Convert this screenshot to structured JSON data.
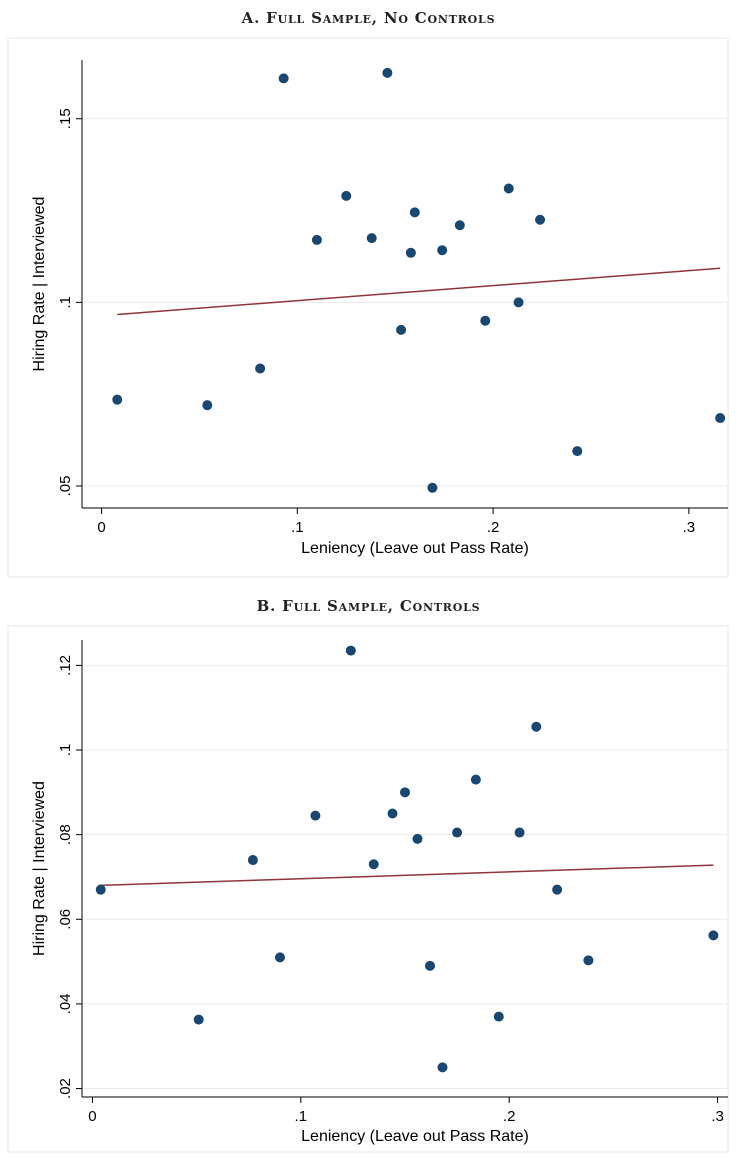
{
  "chart_data": [
    {
      "type": "scatter",
      "title": "A. Full Sample, No Controls",
      "xlabel": "Leniency (Leave out Pass Rate)",
      "ylabel": "Hiring Rate | Interviewed",
      "xlim": [
        -0.01,
        0.32
      ],
      "ylim": [
        0.044,
        0.166
      ],
      "xticks": [
        0,
        0.1,
        0.2,
        0.3
      ],
      "xtick_labels": [
        "0",
        ".1",
        ".2",
        ".3"
      ],
      "yticks": [
        0.05,
        0.1,
        0.15
      ],
      "ytick_labels": [
        ".05",
        ".1",
        ".15"
      ],
      "grid": true,
      "points": [
        {
          "x": 0.008,
          "y": 0.0735
        },
        {
          "x": 0.054,
          "y": 0.072
        },
        {
          "x": 0.081,
          "y": 0.082
        },
        {
          "x": 0.093,
          "y": 0.161
        },
        {
          "x": 0.11,
          "y": 0.117
        },
        {
          "x": 0.125,
          "y": 0.129
        },
        {
          "x": 0.138,
          "y": 0.1175
        },
        {
          "x": 0.146,
          "y": 0.1625
        },
        {
          "x": 0.153,
          "y": 0.0925
        },
        {
          "x": 0.158,
          "y": 0.1135
        },
        {
          "x": 0.16,
          "y": 0.1245
        },
        {
          "x": 0.169,
          "y": 0.0495
        },
        {
          "x": 0.174,
          "y": 0.1142
        },
        {
          "x": 0.183,
          "y": 0.121
        },
        {
          "x": 0.196,
          "y": 0.095
        },
        {
          "x": 0.208,
          "y": 0.131
        },
        {
          "x": 0.213,
          "y": 0.1
        },
        {
          "x": 0.224,
          "y": 0.1225
        },
        {
          "x": 0.243,
          "y": 0.0595
        },
        {
          "x": 0.316,
          "y": 0.0685
        }
      ],
      "fit": {
        "x": [
          0.008,
          0.316
        ],
        "y": [
          0.0967,
          0.1093
        ]
      }
    },
    {
      "type": "scatter",
      "title": "B. Full Sample, Controls",
      "xlabel": "Leniency (Leave out Pass Rate)",
      "ylabel": "Hiring Rate | Interviewed",
      "xlim": [
        -0.005,
        0.305
      ],
      "ylim": [
        0.018,
        0.126
      ],
      "xticks": [
        0,
        0.1,
        0.2,
        0.3
      ],
      "xtick_labels": [
        "0",
        ".1",
        ".2",
        ".3"
      ],
      "yticks": [
        0.02,
        0.04,
        0.06,
        0.08,
        0.1,
        0.12
      ],
      "ytick_labels": [
        ".02",
        ".04",
        ".06",
        ".08",
        ".1",
        ".12"
      ],
      "grid": true,
      "points": [
        {
          "x": 0.004,
          "y": 0.067
        },
        {
          "x": 0.051,
          "y": 0.0363
        },
        {
          "x": 0.077,
          "y": 0.074
        },
        {
          "x": 0.09,
          "y": 0.051
        },
        {
          "x": 0.107,
          "y": 0.0845
        },
        {
          "x": 0.124,
          "y": 0.1235
        },
        {
          "x": 0.135,
          "y": 0.073
        },
        {
          "x": 0.144,
          "y": 0.085
        },
        {
          "x": 0.15,
          "y": 0.09
        },
        {
          "x": 0.156,
          "y": 0.079
        },
        {
          "x": 0.162,
          "y": 0.049
        },
        {
          "x": 0.168,
          "y": 0.025
        },
        {
          "x": 0.175,
          "y": 0.0805
        },
        {
          "x": 0.184,
          "y": 0.093
        },
        {
          "x": 0.195,
          "y": 0.037
        },
        {
          "x": 0.205,
          "y": 0.0805
        },
        {
          "x": 0.213,
          "y": 0.1055
        },
        {
          "x": 0.223,
          "y": 0.067
        },
        {
          "x": 0.238,
          "y": 0.0503
        },
        {
          "x": 0.298,
          "y": 0.0562
        }
      ],
      "fit": {
        "x": [
          0.003,
          0.298
        ],
        "y": [
          0.068,
          0.0728
        ]
      }
    }
  ]
}
